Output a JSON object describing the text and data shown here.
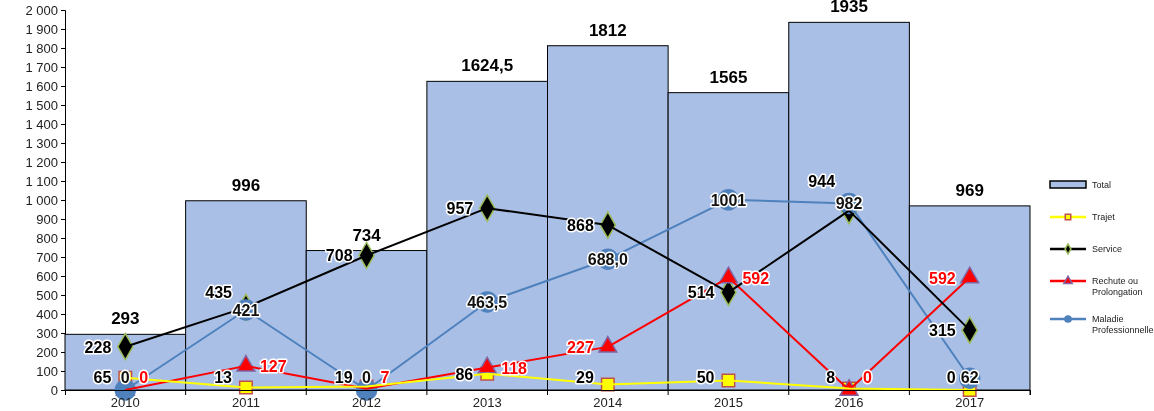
{
  "chart_data": {
    "type": "bar",
    "categories": [
      "2010",
      "2011",
      "2012",
      "2013",
      "2014",
      "2015",
      "2016",
      "2017"
    ],
    "ylim": [
      0,
      2000
    ],
    "yticks": [
      0,
      100,
      200,
      300,
      400,
      500,
      600,
      700,
      800,
      900,
      {
        "value": 1000,
        "label": "1 000"
      },
      {
        "value": 1100,
        "label": "1 100"
      },
      {
        "value": 1200,
        "label": "1 200"
      },
      {
        "value": 1300,
        "label": "1 300"
      },
      {
        "value": 1400,
        "label": "1 400"
      },
      {
        "value": 1500,
        "label": "1 500"
      },
      {
        "value": 1600,
        "label": "1 600"
      },
      {
        "value": 1700,
        "label": "1 700"
      },
      {
        "value": 1800,
        "label": "1 800"
      },
      {
        "value": 1900,
        "label": "1 900"
      },
      {
        "value": 2000,
        "label": "2 000"
      }
    ],
    "legend": "right",
    "series": [
      {
        "name": "Total",
        "color": "#a9bfe6",
        "values": [
          293,
          996,
          734,
          1624.5,
          1812,
          1565,
          1935,
          969
        ],
        "value_labels": [
          "293",
          "996",
          "734",
          "1624,5",
          "1812",
          "1565",
          "1935",
          "969"
        ]
      },
      {
        "name": "Trajet",
        "type": "line",
        "color": "#ffff00",
        "marker": "square",
        "values": [
          65,
          13,
          19,
          86,
          29,
          50,
          8,
          0
        ],
        "value_labels": [
          "65",
          "13",
          "19",
          "86",
          "29",
          "50",
          "8",
          "0"
        ]
      },
      {
        "name": "Service",
        "type": "line",
        "color": "#000000",
        "marker": "diamond",
        "values": [
          228,
          435,
          708,
          957,
          868,
          514,
          944,
          315
        ],
        "value_labels": [
          "228",
          "435",
          "708",
          "957",
          "868",
          "514",
          "944",
          "315"
        ]
      },
      {
        "name": "Rechute ou Prolongation",
        "type": "line",
        "color": "#ff0000",
        "marker": "triangle",
        "values": [
          0,
          127,
          7,
          118,
          227,
          592,
          0,
          592
        ],
        "value_labels": [
          "0",
          "127",
          "7",
          "118",
          "227",
          "592",
          "0",
          "592"
        ]
      },
      {
        "name": "Maladie Professionnelle",
        "type": "line",
        "color": "#4f81bd",
        "marker": "circle",
        "values": [
          0,
          421,
          0,
          463.5,
          688.0,
          1001,
          982,
          62
        ],
        "value_labels": [
          "0",
          "421",
          "0",
          "463,5",
          "688,0",
          "1001",
          "982",
          "62"
        ]
      }
    ]
  }
}
